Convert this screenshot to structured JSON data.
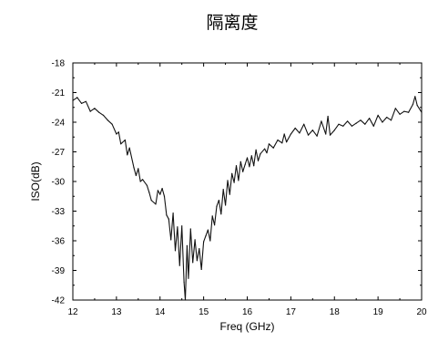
{
  "chart_data": {
    "type": "line",
    "title": "隔离度",
    "xlabel": "Freq (GHz)",
    "ylabel": "ISO(dB)",
    "xlim": [
      12,
      20
    ],
    "ylim": [
      -42,
      -18
    ],
    "xticks": [
      12,
      13,
      14,
      15,
      16,
      17,
      18,
      19,
      20
    ],
    "yticks": [
      -42,
      -39,
      -36,
      -33,
      -30,
      -27,
      -24,
      -21,
      -18
    ],
    "grid": false,
    "legend": "none",
    "series": [
      {
        "color": "#111111",
        "x": [
          12.0,
          12.1,
          12.2,
          12.3,
          12.4,
          12.5,
          12.6,
          12.7,
          12.8,
          12.9,
          13.0,
          13.05,
          13.1,
          13.2,
          13.25,
          13.3,
          13.4,
          13.45,
          13.5,
          13.55,
          13.6,
          13.7,
          13.75,
          13.8,
          13.9,
          13.95,
          14.0,
          14.05,
          14.1,
          14.15,
          14.2,
          14.25,
          14.3,
          14.35,
          14.4,
          14.45,
          14.5,
          14.55,
          14.58,
          14.62,
          14.65,
          14.7,
          14.75,
          14.8,
          14.85,
          14.9,
          14.95,
          15.0,
          15.05,
          15.1,
          15.15,
          15.2,
          15.25,
          15.3,
          15.35,
          15.4,
          15.45,
          15.5,
          15.55,
          15.6,
          15.65,
          15.7,
          15.75,
          15.8,
          15.85,
          15.9,
          15.95,
          16.0,
          16.05,
          16.1,
          16.15,
          16.2,
          16.25,
          16.3,
          16.4,
          16.45,
          16.5,
          16.6,
          16.7,
          16.8,
          16.85,
          16.9,
          17.0,
          17.1,
          17.2,
          17.3,
          17.4,
          17.5,
          17.6,
          17.7,
          17.8,
          17.85,
          17.9,
          18.0,
          18.1,
          18.2,
          18.3,
          18.4,
          18.5,
          18.6,
          18.7,
          18.8,
          18.9,
          19.0,
          19.1,
          19.2,
          19.3,
          19.4,
          19.5,
          19.6,
          19.7,
          19.8,
          19.85,
          19.9,
          20.0
        ],
        "values": [
          -21.8,
          -21.5,
          -22.1,
          -21.9,
          -22.9,
          -22.6,
          -23.0,
          -23.3,
          -23.8,
          -24.2,
          -25.2,
          -25.0,
          -26.2,
          -25.8,
          -27.3,
          -26.6,
          -28.6,
          -29.4,
          -28.7,
          -30.0,
          -29.8,
          -30.4,
          -31.1,
          -31.9,
          -32.3,
          -30.9,
          -31.3,
          -30.7,
          -31.5,
          -33.4,
          -33.8,
          -35.9,
          -33.2,
          -37.0,
          -34.6,
          -38.5,
          -34.5,
          -40.2,
          -42.0,
          -36.5,
          -39.8,
          -34.8,
          -38.2,
          -35.9,
          -38.0,
          -36.8,
          -38.9,
          -36.1,
          -35.5,
          -34.9,
          -36.0,
          -33.5,
          -34.4,
          -32.5,
          -31.9,
          -33.3,
          -30.8,
          -32.4,
          -29.9,
          -31.3,
          -29.2,
          -30.1,
          -28.4,
          -29.9,
          -28.0,
          -29.0,
          -28.3,
          -27.6,
          -28.5,
          -27.4,
          -28.4,
          -26.8,
          -27.9,
          -27.2,
          -26.7,
          -27.1,
          -26.2,
          -26.6,
          -25.8,
          -26.1,
          -25.2,
          -26.0,
          -25.2,
          -24.6,
          -25.1,
          -24.2,
          -25.3,
          -24.8,
          -25.4,
          -23.9,
          -25.2,
          -23.4,
          -25.3,
          -24.8,
          -24.2,
          -24.4,
          -23.9,
          -24.4,
          -24.1,
          -23.8,
          -24.2,
          -23.6,
          -24.4,
          -23.3,
          -24.0,
          -23.5,
          -23.8,
          -22.6,
          -23.2,
          -22.9,
          -23.0,
          -22.2,
          -21.4,
          -22.3,
          -23.0
        ]
      }
    ]
  }
}
